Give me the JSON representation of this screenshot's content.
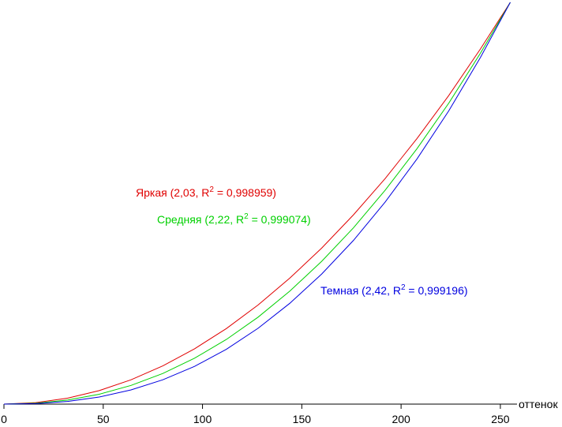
{
  "chart_data": {
    "type": "line",
    "x_label": "оттенок",
    "x": [
      0,
      16,
      32,
      48,
      64,
      80,
      96,
      112,
      128,
      144,
      160,
      176,
      192,
      208,
      224,
      240,
      255
    ],
    "xlim": [
      0,
      256
    ],
    "xticks": [
      0,
      50,
      100,
      150,
      200,
      250
    ],
    "ylim": [
      0,
      1
    ],
    "series": [
      {
        "name": "Яркая",
        "label_parts": [
          "Яркая (2,03, R",
          "2",
          " = 0,998959)"
        ],
        "color": "#e00000",
        "values": [
          0,
          0.0036,
          0.0148,
          0.0337,
          0.0605,
          0.0951,
          0.1377,
          0.188,
          0.2468,
          0.3138,
          0.3883,
          0.471,
          0.5616,
          0.661,
          0.768,
          0.8843,
          1
        ]
      },
      {
        "name": "Средняя",
        "label_parts": [
          "Средняя (2,22, R",
          "2",
          " = 0,999074)"
        ],
        "color": "#00d000",
        "values": [
          0,
          0.0021,
          0.01,
          0.0246,
          0.0465,
          0.0763,
          0.1143,
          0.1609,
          0.2165,
          0.2814,
          0.3553,
          0.4387,
          0.5326,
          0.6357,
          0.749,
          0.8737,
          1
        ]
      },
      {
        "name": "Темная",
        "label_parts": [
          "Темная (2,42, R",
          "2",
          " = 0,999196)"
        ],
        "color": "#0000e0",
        "values": [
          0,
          0.0012,
          0.0066,
          0.0176,
          0.0353,
          0.0605,
          0.094,
          0.1364,
          0.1888,
          0.2511,
          0.3237,
          0.4074,
          0.5031,
          0.6102,
          0.7298,
          0.8633,
          1
        ]
      }
    ]
  }
}
